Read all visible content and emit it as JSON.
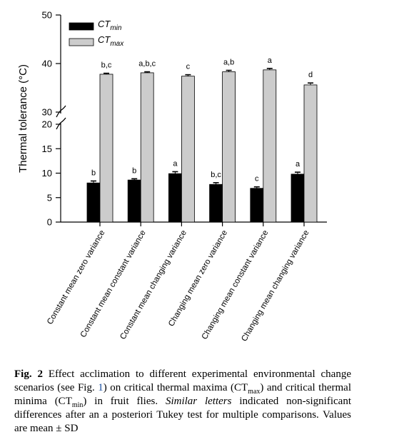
{
  "chart_data": {
    "type": "bar",
    "ylabel": "Thermal tolerance (°C)",
    "y_ticks_lower": [
      "0",
      "5",
      "10",
      "15",
      "20"
    ],
    "y_ticks_upper": [
      "30",
      "40",
      "50"
    ],
    "axis_break": true,
    "categories": [
      "Constant mean zero variance",
      "Constant mean constant variance",
      "Constant mean changing variance",
      "Changing mean zero variance",
      "Changing mean constant variance",
      "Changing mean changing variance"
    ],
    "series": [
      {
        "name": "CT",
        "name_sub": "min",
        "color": "#000000",
        "values": [
          8.0,
          8.6,
          9.9,
          7.7,
          6.9,
          9.8
        ],
        "sd": [
          0.4,
          0.25,
          0.4,
          0.35,
          0.3,
          0.4
        ],
        "letters": [
          "b",
          "b",
          "a",
          "b,c",
          "c",
          "a"
        ]
      },
      {
        "name": "CT",
        "name_sub": "max",
        "color": "#cccccc",
        "values": [
          37.8,
          38.1,
          37.4,
          38.3,
          38.7,
          35.6
        ],
        "sd": [
          0.2,
          0.2,
          0.3,
          0.3,
          0.3,
          0.4
        ],
        "letters": [
          "b,c",
          "a,b,c",
          "c",
          "a,b",
          "a",
          "d"
        ]
      }
    ],
    "legend_position": "top-left"
  },
  "caption": {
    "label": "Fig. 2",
    "t1": " Effect acclimation to different experimental environmental change scenarios (see Fig. ",
    "ref": "1",
    "t2": ") on critical thermal maxima (CT",
    "sub1": "max",
    "t3": ") and critical thermal minima (CT",
    "sub2": "min",
    "t4": ") in fruit flies. ",
    "italic": "Similar letters",
    "t5": " indicated non-significant differences after an a posteriori Tukey test for multiple comparisons. Values are mean ± SD"
  }
}
